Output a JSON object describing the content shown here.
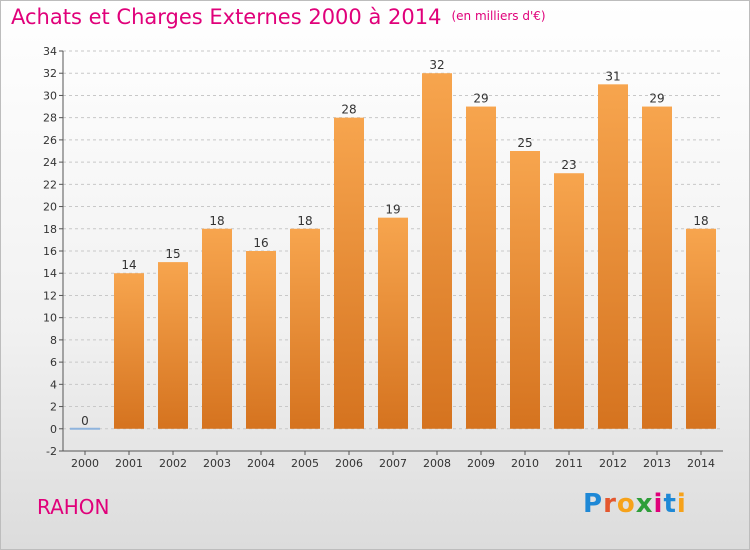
{
  "chart_data": {
    "type": "bar",
    "title": "Achats et Charges Externes 2000 à 2014",
    "subtitle": "(en milliers d'€)",
    "categories": [
      "2000",
      "2001",
      "2002",
      "2003",
      "2004",
      "2005",
      "2006",
      "2007",
      "2008",
      "2009",
      "2010",
      "2011",
      "2012",
      "2013",
      "2014"
    ],
    "values": [
      0,
      14,
      15,
      18,
      16,
      18,
      28,
      19,
      32,
      29,
      25,
      23,
      31,
      29,
      18
    ],
    "ylim": [
      -2,
      34
    ],
    "yticks": [
      -2,
      0,
      2,
      4,
      6,
      8,
      10,
      12,
      14,
      16,
      18,
      20,
      22,
      24,
      26,
      28,
      30,
      32,
      34
    ],
    "grid": true,
    "bar_color_light": "#f7a54e",
    "bar_color_dark": "#d5731f",
    "zero_bar_color": "#8fb4dd"
  },
  "place": "RAHON",
  "logo": {
    "letters": [
      "P",
      "r",
      "o",
      "x",
      "i",
      "t",
      "i"
    ],
    "colors": [
      "#1e88d6",
      "#e4572e",
      "#f6a21a",
      "#2e9e3a",
      "#e0007a",
      "#1e88d6",
      "#f6a21a"
    ]
  },
  "colors": {
    "title": "#e0007a",
    "grid": "#c8c8c8",
    "axis": "#555555",
    "label": "#333333"
  }
}
